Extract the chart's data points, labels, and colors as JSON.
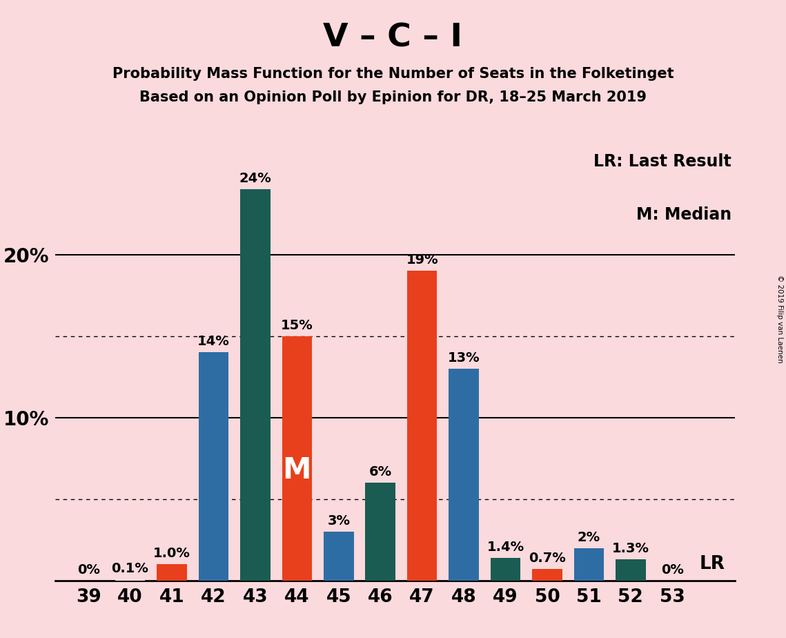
{
  "title": "V – C – I",
  "subtitle1": "Probability Mass Function for the Number of Seats in the Folketinget",
  "subtitle2": "Based on an Opinion Poll by Epinion for DR, 18–25 March 2019",
  "copyright": "© 2019 Filip van Laenen",
  "legend_lr": "LR: Last Result",
  "legend_m": "M: Median",
  "background_color": "#fadadd",
  "seats": [
    39,
    40,
    41,
    42,
    43,
    44,
    45,
    46,
    47,
    48,
    49,
    50,
    51,
    52,
    53
  ],
  "values": [
    0.0,
    0.1,
    1.0,
    14.0,
    24.0,
    15.0,
    3.0,
    6.0,
    19.0,
    13.0,
    1.4,
    0.7,
    2.0,
    1.3,
    0.0
  ],
  "labels": [
    "0%",
    "0.1%",
    "1.0%",
    "14%",
    "24%",
    "15%",
    "3%",
    "6%",
    "19%",
    "13%",
    "1.4%",
    "0.7%",
    "2%",
    "1.3%",
    "0%"
  ],
  "colors": [
    "#fadadd",
    "#fadadd",
    "#e8401c",
    "#2e6da4",
    "#1a5c52",
    "#e8401c",
    "#2e6da4",
    "#1a5c52",
    "#e8401c",
    "#2e6da4",
    "#1a5c52",
    "#e8401c",
    "#2e6da4",
    "#1a5c52",
    "#fadadd"
  ],
  "median_seat": 44,
  "lr_seat": 53,
  "ylim": [
    0,
    27
  ],
  "ylabel_ticks": [
    10,
    20
  ],
  "dotted_lines": [
    5,
    15
  ],
  "title_fontsize": 34,
  "subtitle_fontsize": 15,
  "tick_fontsize": 19,
  "label_fontsize": 14,
  "axis_label_fontsize": 20,
  "legend_fontsize": 17,
  "m_fontsize": 30
}
